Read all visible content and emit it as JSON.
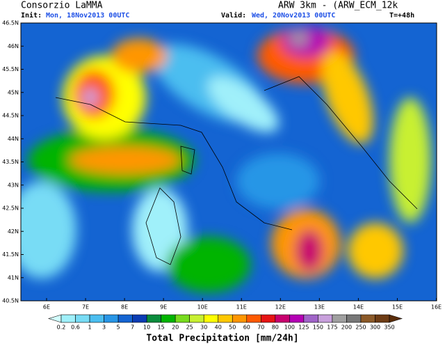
{
  "header": {
    "title": "Consorzio LaMMA",
    "model": "ARW 3km - (ARW_ECM_12k",
    "init_label": "Init:",
    "init": "Mon, 18Nov2013 00UTC",
    "valid_label": "Valid:",
    "valid": "Wed, 20Nov2013 00UTC",
    "lead": "T=+48h"
  },
  "map": {
    "lat_labels": [
      "46.5N",
      "46N",
      "45.5N",
      "45N",
      "44.5N",
      "44N",
      "43.5N",
      "43N",
      "42.5N",
      "42N",
      "41.5N",
      "41N",
      "40.5N"
    ],
    "lon_labels": [
      "6E",
      "7E",
      "8E",
      "9E",
      "10E",
      "11E",
      "12E",
      "13E",
      "14E",
      "15E",
      "16E"
    ]
  },
  "colorbar": {
    "title": "Total Precipitation [mm/24h]",
    "labels": [
      "0.2",
      "0.6",
      "1",
      "3",
      "5",
      "7",
      "10",
      "15",
      "20",
      "25",
      "30",
      "40",
      "50",
      "60",
      "70",
      "80",
      "100",
      "125",
      "150",
      "175",
      "200",
      "250",
      "300",
      "350"
    ],
    "colors": [
      "#d2ffff",
      "#a0f0fa",
      "#78dcf5",
      "#4bbef0",
      "#2896e6",
      "#1464d2",
      "#0a3cb4",
      "#0a8c3c",
      "#00b400",
      "#78dc1e",
      "#c8f032",
      "#ffff00",
      "#ffc800",
      "#ff9600",
      "#ff5a00",
      "#e61414",
      "#c8006e",
      "#b400b4",
      "#a064c8",
      "#c8a0dc",
      "#a0a0a0",
      "#787878",
      "#8c5a28",
      "#6e3c14",
      "#5a2d0a"
    ]
  }
}
